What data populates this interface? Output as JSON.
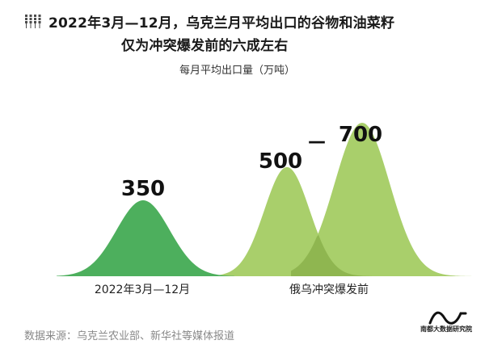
{
  "title": {
    "line1": "2022年3月—12月，乌克兰月平均出口的谷物和油菜籽",
    "line2": "仅为冲突爆发前的六成左右"
  },
  "subtitle": "每月平均出口量（万吨）",
  "source": "数据来源：乌克兰农业部、新华社等媒体报道",
  "logo_text": "南都大数据研究院",
  "colors": {
    "dark_green": "#4daf5d",
    "light_green": "#a9cf6b",
    "overlap_green": "#8fb650",
    "title_icon": "#4b4b4b"
  },
  "chart_data": {
    "type": "area",
    "title": "2022年3月—12月，乌克兰月平均出口的谷物和油菜籽仅为冲突爆发前的六成左右",
    "ylabel": "每月平均出口量（万吨）",
    "categories": [
      "2022年3月—12月",
      "俄乌冲突爆发前"
    ],
    "series": [
      {
        "category": "2022年3月—12月",
        "label": "350",
        "value": 350
      },
      {
        "category": "俄乌冲突爆发前",
        "label": "500",
        "value": 500
      },
      {
        "category": "俄乌冲突爆发前",
        "label": "700",
        "value": 700
      }
    ],
    "range_separator": "—",
    "ylim": [
      0,
      800
    ]
  }
}
